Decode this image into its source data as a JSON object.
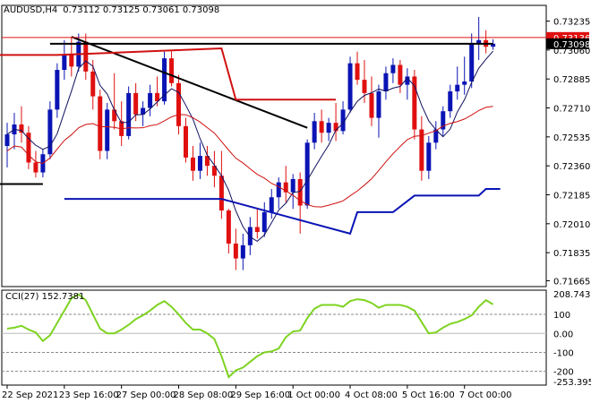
{
  "header": {
    "symbol_tf": "AUDUSD,H4",
    "ohlc": "0.73112 0.73125 0.73061 0.73098"
  },
  "indicator_header": "CCI(27) 152.7381",
  "colors": {
    "bull": "#0a14b4",
    "bear": "#e01010",
    "ma_fast": "#101060",
    "ma_slow": "#d01010",
    "trendline": "#000000",
    "resistance": "#d01010",
    "support": "#0a14b4",
    "cci": "#7ed321",
    "price_tag_current": "#000000",
    "price_tag_ask": "#e01010"
  },
  "chart_data": [
    {
      "type": "candlestick",
      "title": "AUDUSD,H4",
      "price_axis_ticks": [
        0.73235,
        0.7306,
        0.72885,
        0.7271,
        0.72535,
        0.7236,
        0.72185,
        0.7201,
        0.71835,
        0.71665
      ],
      "ylim": [
        0.7163,
        0.7333
      ],
      "current_price": 0.73098,
      "ask_price": 0.73136,
      "time_labels": [
        "22 Sep 2021",
        "23 Sep 16:00",
        "27 Sep 00:00",
        "28 Sep 08:00",
        "29 Sep 16:00",
        "1 Oct 00:00",
        "4 Oct 08:00",
        "5 Oct 16:00",
        "7 Oct 00:00"
      ],
      "time_label_bars": [
        0,
        8,
        16,
        24,
        32,
        40,
        48,
        56,
        64
      ],
      "candles": [
        [
          0.7248,
          0.7262,
          0.7235,
          0.7255
        ],
        [
          0.7255,
          0.7268,
          0.7246,
          0.7261
        ],
        [
          0.7261,
          0.7272,
          0.725,
          0.7256
        ],
        [
          0.7256,
          0.726,
          0.7234,
          0.7238
        ],
        [
          0.7238,
          0.7245,
          0.7229,
          0.7232
        ],
        [
          0.7232,
          0.7246,
          0.7229,
          0.7243
        ],
        [
          0.7243,
          0.7275,
          0.724,
          0.727
        ],
        [
          0.727,
          0.7298,
          0.7265,
          0.7294
        ],
        [
          0.7294,
          0.7312,
          0.7288,
          0.7303
        ],
        [
          0.7303,
          0.7314,
          0.729,
          0.7296
        ],
        [
          0.7296,
          0.7316,
          0.7293,
          0.7311
        ],
        [
          0.7311,
          0.7316,
          0.7288,
          0.7293
        ],
        [
          0.7293,
          0.73,
          0.727,
          0.7278
        ],
        [
          0.7278,
          0.7282,
          0.724,
          0.7245
        ],
        [
          0.7245,
          0.7274,
          0.724,
          0.727
        ],
        [
          0.727,
          0.7292,
          0.7258,
          0.7263
        ],
        [
          0.7263,
          0.7275,
          0.7248,
          0.7254
        ],
        [
          0.7254,
          0.7284,
          0.7252,
          0.728
        ],
        [
          0.728,
          0.7286,
          0.7263,
          0.7267
        ],
        [
          0.7267,
          0.7275,
          0.726,
          0.7271
        ],
        [
          0.7271,
          0.7285,
          0.7266,
          0.728
        ],
        [
          0.728,
          0.729,
          0.7272,
          0.7275
        ],
        [
          0.7275,
          0.7305,
          0.7273,
          0.7301
        ],
        [
          0.7301,
          0.7306,
          0.7284,
          0.7286
        ],
        [
          0.7286,
          0.7291,
          0.7255,
          0.726
        ],
        [
          0.726,
          0.7265,
          0.7238,
          0.7241
        ],
        [
          0.7241,
          0.7248,
          0.7227,
          0.7233
        ],
        [
          0.7233,
          0.725,
          0.7228,
          0.7242
        ],
        [
          0.7242,
          0.7248,
          0.723,
          0.7236
        ],
        [
          0.7236,
          0.7245,
          0.7223,
          0.723
        ],
        [
          0.723,
          0.7245,
          0.7204,
          0.7209
        ],
        [
          0.7209,
          0.721,
          0.7183,
          0.7189
        ],
        [
          0.7189,
          0.7198,
          0.7173,
          0.718
        ],
        [
          0.718,
          0.7195,
          0.7173,
          0.7188
        ],
        [
          0.7188,
          0.7205,
          0.7182,
          0.7199
        ],
        [
          0.7199,
          0.721,
          0.7192,
          0.7196
        ],
        [
          0.7196,
          0.7214,
          0.7193,
          0.7208
        ],
        [
          0.7208,
          0.7222,
          0.7204,
          0.7217
        ],
        [
          0.7217,
          0.7229,
          0.721,
          0.7226
        ],
        [
          0.7226,
          0.7236,
          0.7214,
          0.722
        ],
        [
          0.722,
          0.7231,
          0.721,
          0.7228
        ],
        [
          0.7228,
          0.7232,
          0.7195,
          0.7212
        ],
        [
          0.7212,
          0.7252,
          0.721,
          0.725
        ],
        [
          0.725,
          0.7268,
          0.7246,
          0.7263
        ],
        [
          0.7263,
          0.727,
          0.725,
          0.7256
        ],
        [
          0.7256,
          0.7265,
          0.7251,
          0.7262
        ],
        [
          0.7262,
          0.7274,
          0.7251,
          0.7257
        ],
        [
          0.7257,
          0.7275,
          0.7255,
          0.727
        ],
        [
          0.727,
          0.7302,
          0.7268,
          0.7298
        ],
        [
          0.7298,
          0.7305,
          0.7285,
          0.7288
        ],
        [
          0.7288,
          0.73,
          0.7274,
          0.728
        ],
        [
          0.728,
          0.729,
          0.726,
          0.7265
        ],
        [
          0.7265,
          0.7285,
          0.7253,
          0.7281
        ],
        [
          0.7281,
          0.7296,
          0.7276,
          0.7292
        ],
        [
          0.7292,
          0.7301,
          0.7286,
          0.7297
        ],
        [
          0.7297,
          0.73,
          0.728,
          0.7285
        ],
        [
          0.7285,
          0.7295,
          0.7276,
          0.729
        ],
        [
          0.729,
          0.7294,
          0.7252,
          0.7258
        ],
        [
          0.7258,
          0.7266,
          0.7227,
          0.7233
        ],
        [
          0.7233,
          0.7254,
          0.7228,
          0.725
        ],
        [
          0.725,
          0.7263,
          0.7246,
          0.7258
        ],
        [
          0.7258,
          0.7272,
          0.7254,
          0.7269
        ],
        [
          0.7269,
          0.7285,
          0.7265,
          0.7281
        ],
        [
          0.7281,
          0.7296,
          0.7276,
          0.7285
        ],
        [
          0.7285,
          0.7302,
          0.7279,
          0.7287
        ],
        [
          0.7287,
          0.7316,
          0.7283,
          0.731
        ],
        [
          0.731,
          0.7326,
          0.73,
          0.7312
        ],
        [
          0.7312,
          0.7318,
          0.7304,
          0.7308
        ],
        [
          0.7308,
          0.73125,
          0.73061,
          0.73098
        ]
      ],
      "moving_averages": [
        {
          "period": 5,
          "role": "fast"
        },
        {
          "period": 20,
          "role": "slow"
        }
      ],
      "annotations": [
        {
          "type": "trendline",
          "from": {
            "bar": 9,
            "price": 0.7314
          },
          "to": {
            "bar": 42,
            "price": 0.7259
          }
        },
        {
          "type": "horizontal",
          "price": 0.73098,
          "from_bar": 6,
          "to_bar": 68
        },
        {
          "type": "step_line",
          "role": "resistance",
          "points": [
            {
              "bar": -1,
              "price": 0.7303
            },
            {
              "bar": 7,
              "price": 0.7303
            },
            {
              "bar": 30,
              "price": 0.7307
            },
            {
              "bar": 32,
              "price": 0.7276
            },
            {
              "bar": 46,
              "price": 0.7276
            }
          ]
        },
        {
          "type": "step_line",
          "role": "support",
          "points": [
            {
              "bar": 8,
              "price": 0.7216
            },
            {
              "bar": 30,
              "price": 0.7216
            },
            {
              "bar": 48,
              "price": 0.7195
            },
            {
              "bar": 49,
              "price": 0.7208
            },
            {
              "bar": 54,
              "price": 0.7208
            },
            {
              "bar": 57,
              "price": 0.7218
            },
            {
              "bar": 66,
              "price": 0.7218
            },
            {
              "bar": 67,
              "price": 0.7222
            },
            {
              "bar": 69,
              "price": 0.7222
            }
          ]
        },
        {
          "type": "horizontal",
          "price": 0.7225,
          "from_bar": -1,
          "to_bar": 5
        }
      ]
    },
    {
      "type": "line",
      "title": "CCI(27) 152.7381",
      "value_axis_labels": [
        "208.7433",
        "100",
        "0.00",
        "-100",
        "-200",
        "-253.3952"
      ],
      "ylim": [
        -253.3952,
        208.7433
      ],
      "reference_levels": [
        100,
        0,
        -100,
        -200
      ],
      "series": [
        {
          "name": "CCI(27)",
          "values": [
            25,
            30,
            40,
            20,
            5,
            -40,
            -10,
            55,
            120,
            185,
            205,
            175,
            100,
            25,
            0,
            0,
            20,
            45,
            75,
            95,
            120,
            150,
            170,
            140,
            100,
            55,
            20,
            20,
            0,
            -30,
            -120,
            -230,
            -195,
            -180,
            -150,
            -120,
            -100,
            -95,
            -80,
            -20,
            10,
            15,
            80,
            130,
            150,
            150,
            150,
            140,
            170,
            180,
            175,
            160,
            135,
            150,
            150,
            150,
            140,
            120,
            60,
            0,
            5,
            30,
            50,
            60,
            75,
            95,
            140,
            175,
            152.7381
          ]
        }
      ]
    }
  ]
}
